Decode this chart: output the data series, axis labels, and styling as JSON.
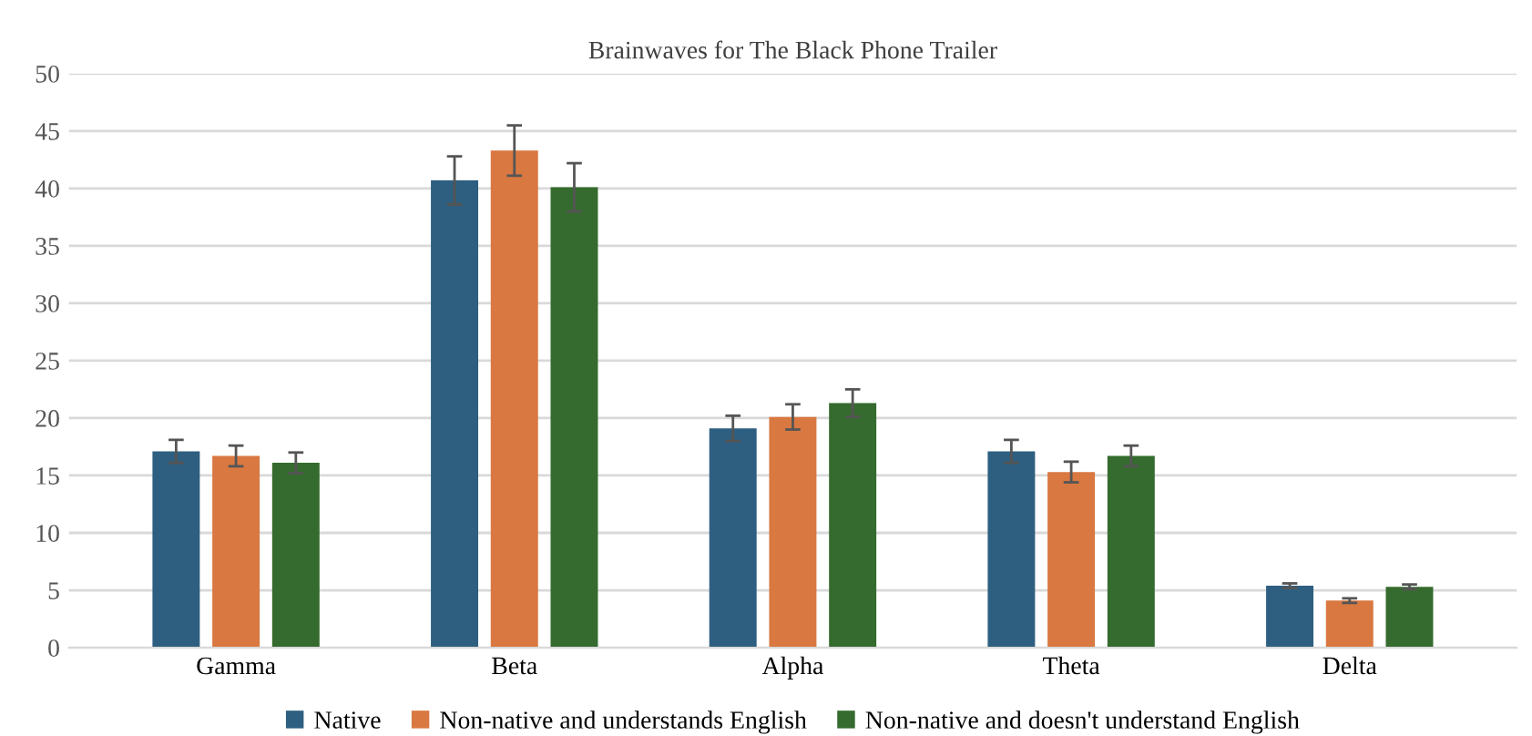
{
  "chart_data": {
    "type": "bar",
    "title": "Brainwaves for The Black Phone Trailer",
    "categories": [
      "Gamma",
      "Beta",
      "Alpha",
      "Theta",
      "Delta"
    ],
    "series": [
      {
        "name": "Native",
        "color": "#2e5f80",
        "values": [
          17.1,
          40.7,
          19.1,
          17.1,
          5.4
        ],
        "errors": [
          1.0,
          2.1,
          1.1,
          1.0,
          0.2
        ]
      },
      {
        "name": "Non-native and understands English",
        "color": "#d97841",
        "values": [
          16.7,
          43.3,
          20.1,
          15.3,
          4.1
        ],
        "errors": [
          0.9,
          2.2,
          1.1,
          0.9,
          0.2
        ]
      },
      {
        "name": "Non-native and doesn't understand English",
        "color": "#356b2e",
        "values": [
          16.1,
          40.1,
          21.3,
          16.7,
          5.3
        ],
        "errors": [
          0.9,
          2.1,
          1.2,
          0.9,
          0.2
        ]
      }
    ],
    "ylim": [
      0,
      50
    ],
    "yticks": [
      0,
      5,
      10,
      15,
      20,
      25,
      30,
      35,
      40,
      45,
      50
    ],
    "grid": "y",
    "legend": "bottom"
  }
}
